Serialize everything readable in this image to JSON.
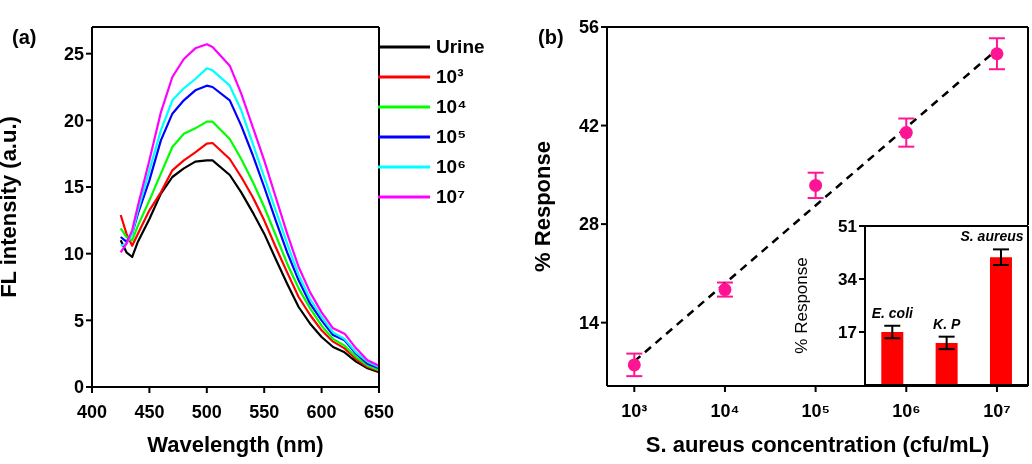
{
  "chart_data": [
    {
      "type": "line",
      "xlabel": "Wavelength (nm)",
      "ylabel": "FL intensity (a.u.)",
      "annotations": [
        "(a)"
      ],
      "xlim": [
        400,
        650
      ],
      "xticks": [
        400,
        450,
        500,
        550,
        600,
        650
      ],
      "ylim": [
        0,
        27
      ],
      "yticks": [
        0,
        5,
        10,
        15,
        20,
        25
      ],
      "legend": "top right",
      "x": [
        425,
        430,
        435,
        440,
        450,
        460,
        470,
        480,
        490,
        500,
        505,
        520,
        530,
        540,
        550,
        560,
        570,
        580,
        590,
        600,
        610,
        620,
        630,
        640,
        650
      ],
      "series": [
        {
          "name": "Urine",
          "color": "#000000",
          "values": [
            11.0,
            10.1,
            9.75,
            10.9,
            12.6,
            14.5,
            15.75,
            16.4,
            16.9,
            17.0,
            17.0,
            15.9,
            14.6,
            13.1,
            11.5,
            9.6,
            7.75,
            6.0,
            4.75,
            3.75,
            3.0,
            2.6,
            1.9,
            1.4,
            1.1
          ]
        },
        {
          "name": "10³",
          "color": "#ff0000",
          "values": [
            12.9,
            11.5,
            10.6,
            11.5,
            13.25,
            14.6,
            16.25,
            17.0,
            17.6,
            18.25,
            18.3,
            17.1,
            15.75,
            14.25,
            12.5,
            10.5,
            8.6,
            6.75,
            5.4,
            4.25,
            3.4,
            2.9,
            2.1,
            1.5,
            1.2
          ]
        },
        {
          "name": "10⁴",
          "color": "#00ff00",
          "values": [
            11.9,
            11.25,
            11.0,
            12.1,
            14.0,
            16.0,
            18.0,
            19.0,
            19.4,
            19.9,
            19.9,
            18.6,
            17.1,
            15.4,
            13.5,
            11.4,
            9.25,
            7.4,
            5.9,
            4.6,
            3.6,
            3.1,
            2.25,
            1.6,
            1.25
          ]
        },
        {
          "name": "10⁵",
          "color": "#0000ff",
          "values": [
            11.25,
            10.9,
            11.5,
            13.0,
            15.5,
            18.5,
            20.5,
            21.5,
            22.25,
            22.6,
            22.5,
            21.5,
            19.6,
            17.4,
            15.0,
            12.5,
            10.1,
            8.0,
            6.25,
            5.0,
            3.9,
            3.5,
            2.5,
            1.75,
            1.4
          ]
        },
        {
          "name": "10⁶",
          "color": "#00ffff",
          "values": [
            10.6,
            10.75,
            11.5,
            13.25,
            16.25,
            19.25,
            21.5,
            22.4,
            23.1,
            23.9,
            23.75,
            22.6,
            20.75,
            18.25,
            15.75,
            13.25,
            10.75,
            8.4,
            6.6,
            5.25,
            4.1,
            3.6,
            2.6,
            1.9,
            1.5
          ]
        },
        {
          "name": "10⁷",
          "color": "#ff00ff",
          "values": [
            10.1,
            10.75,
            11.75,
            13.6,
            17.0,
            20.6,
            23.25,
            24.6,
            25.4,
            25.7,
            25.5,
            24.1,
            22.0,
            19.5,
            17.0,
            14.25,
            11.5,
            9.0,
            7.1,
            5.6,
            4.4,
            4.0,
            2.9,
            2.0,
            1.6
          ]
        }
      ]
    },
    {
      "type": "scatter",
      "xlabel": "S. aureus concentration (cfu/mL)",
      "ylabel": "% Response",
      "annotations": [
        "(b)"
      ],
      "log": "x",
      "xlim": [
        500,
        22000000
      ],
      "xticks": [
        {
          "value": 1000,
          "label": "10³"
        },
        {
          "value": 10000,
          "label": "10⁴"
        },
        {
          "value": 100000,
          "label": "10⁵"
        },
        {
          "value": 1000000,
          "label": "10⁶"
        },
        {
          "value": 10000000,
          "label": "10⁷"
        }
      ],
      "ylim": [
        5,
        56
      ],
      "yticks": [
        14,
        28,
        42,
        56
      ],
      "series": [
        {
          "type": "scatter",
          "marker": "circle",
          "color": "#ff1493",
          "x": [
            1000,
            10000,
            100000,
            1000000,
            10000000
          ],
          "values": [
            8.0,
            18.7,
            33.5,
            41.0,
            52.2
          ],
          "errors": [
            1.6,
            1.0,
            1.8,
            2.0,
            2.2
          ]
        },
        {
          "type": "line",
          "color": "#000000",
          "line_style": "dashed",
          "x": [
            1000,
            10000000
          ],
          "values": [
            8.5,
            52.8
          ]
        }
      ]
    },
    {
      "type": "bar",
      "ylabel": "% Response",
      "categories": [
        "E. coli",
        "K. P",
        "S. aureus"
      ],
      "values": [
        17,
        13.5,
        41
      ],
      "errors": [
        2,
        2,
        2.5
      ],
      "color": "#ff0000",
      "ylim": [
        0,
        51
      ],
      "yticks": [
        17,
        34,
        51
      ],
      "tick_labels": "y"
    }
  ]
}
